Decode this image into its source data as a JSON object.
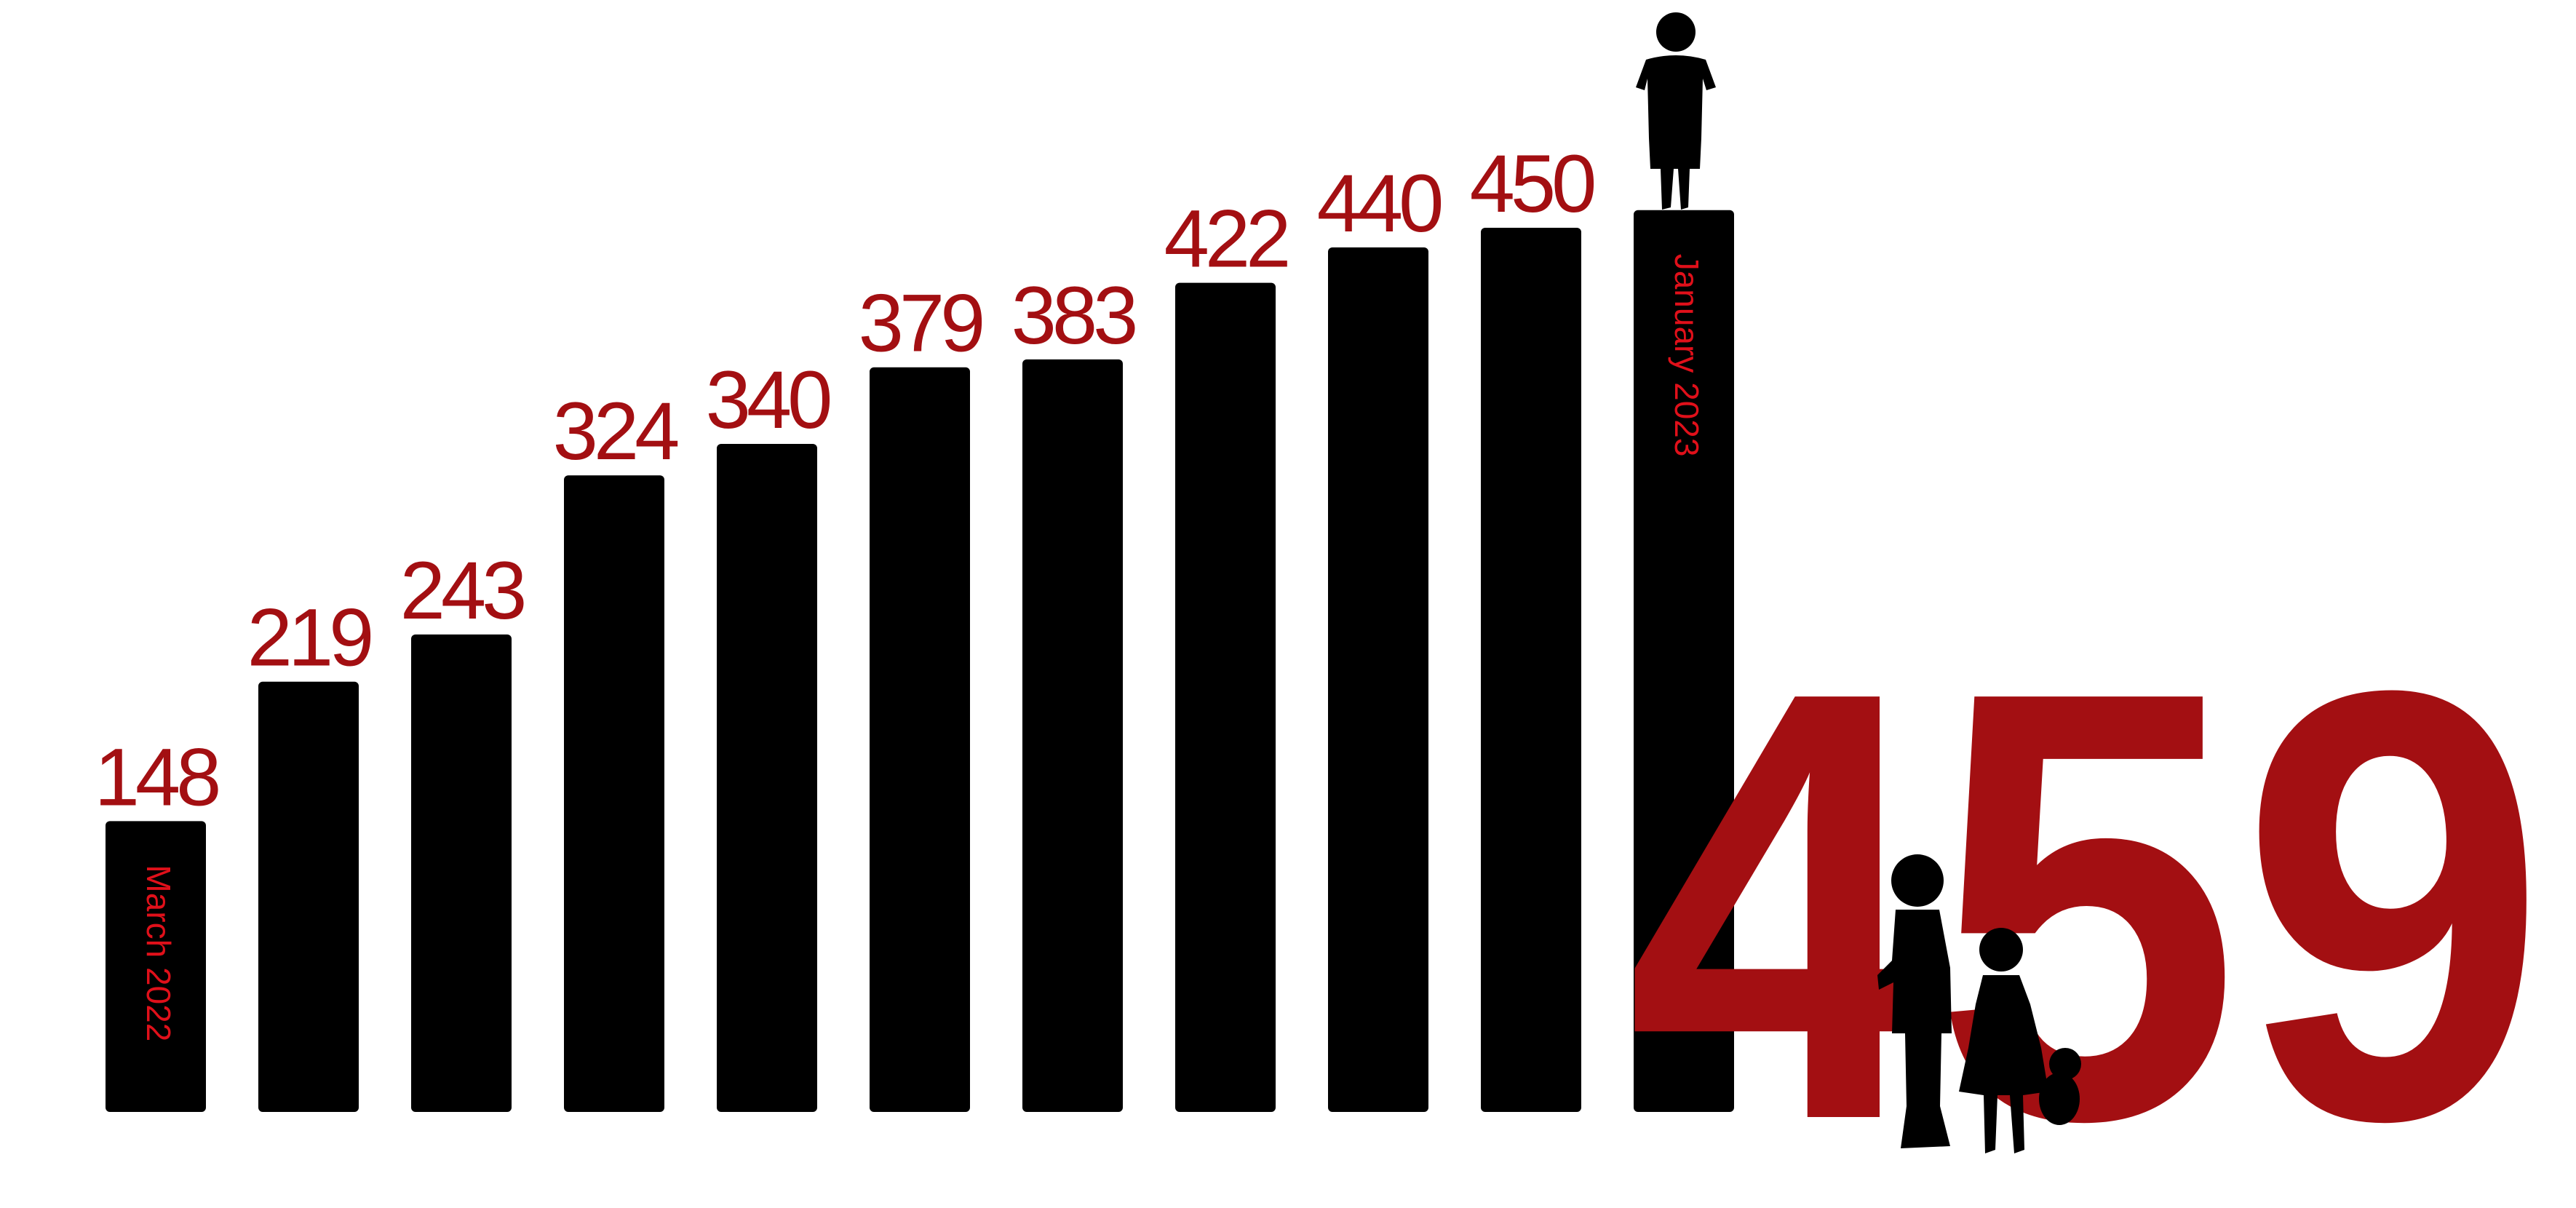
{
  "chart_data": {
    "type": "bar",
    "categories": [
      "March 2022",
      null,
      null,
      null,
      null,
      null,
      null,
      null,
      null,
      null,
      "January 2023"
    ],
    "values": [
      148,
      219,
      243,
      324,
      340,
      379,
      383,
      422,
      440,
      450,
      459
    ],
    "color": "#000000",
    "label_color": "#a30f12",
    "ylim": [
      0,
      460
    ]
  }
}
